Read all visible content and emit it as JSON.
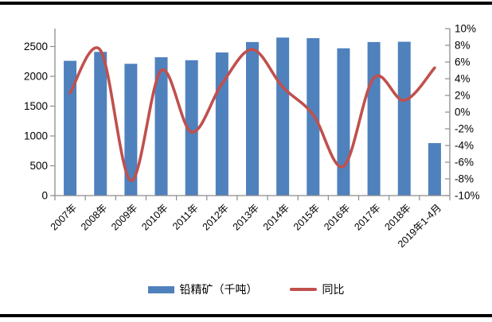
{
  "chart_data": {
    "type": "bar+line-combo",
    "title": "",
    "categories": [
      "2007年",
      "2008年",
      "2009年",
      "2010年",
      "2011年",
      "2012年",
      "2013年",
      "2014年",
      "2015年",
      "2016年",
      "2017年",
      "2018年",
      "2019年1-4月"
    ],
    "series": [
      {
        "name": "铅精矿（千吨）",
        "type": "bar",
        "yaxis": "left",
        "color": "#4F81BD",
        "values": [
          2260,
          2410,
          2210,
          2320,
          2270,
          2400,
          2575,
          2650,
          2640,
          2470,
          2575,
          2580,
          880
        ]
      },
      {
        "name": "同比",
        "type": "line",
        "yaxis": "right",
        "color": "#C0504D",
        "smooth": true,
        "values_percent": [
          2.3,
          7.4,
          -8.2,
          5.0,
          -2.4,
          3.4,
          7.5,
          3.0,
          -0.3,
          -6.5,
          4.1,
          1.4,
          5.3
        ]
      }
    ],
    "left_axis": {
      "min": 0,
      "max": 2800,
      "tick_values": [
        0,
        500,
        1000,
        1500,
        2000,
        2500
      ],
      "tick_labels": [
        "0",
        "500",
        "1000",
        "1500",
        "2000",
        "2500"
      ]
    },
    "right_axis": {
      "min": -10,
      "max": 10,
      "tick_values": [
        -10,
        -8,
        -6,
        -4,
        -2,
        0,
        2,
        4,
        6,
        8,
        10
      ],
      "tick_labels": [
        "-10%",
        "-8%",
        "-6%",
        "-4%",
        "-2%",
        "0%",
        "2%",
        "4%",
        "6%",
        "8%",
        "10%"
      ]
    },
    "grid": false,
    "legend_position": "bottom",
    "axis_color": "#8C8C8C",
    "text_color": "#000000"
  }
}
